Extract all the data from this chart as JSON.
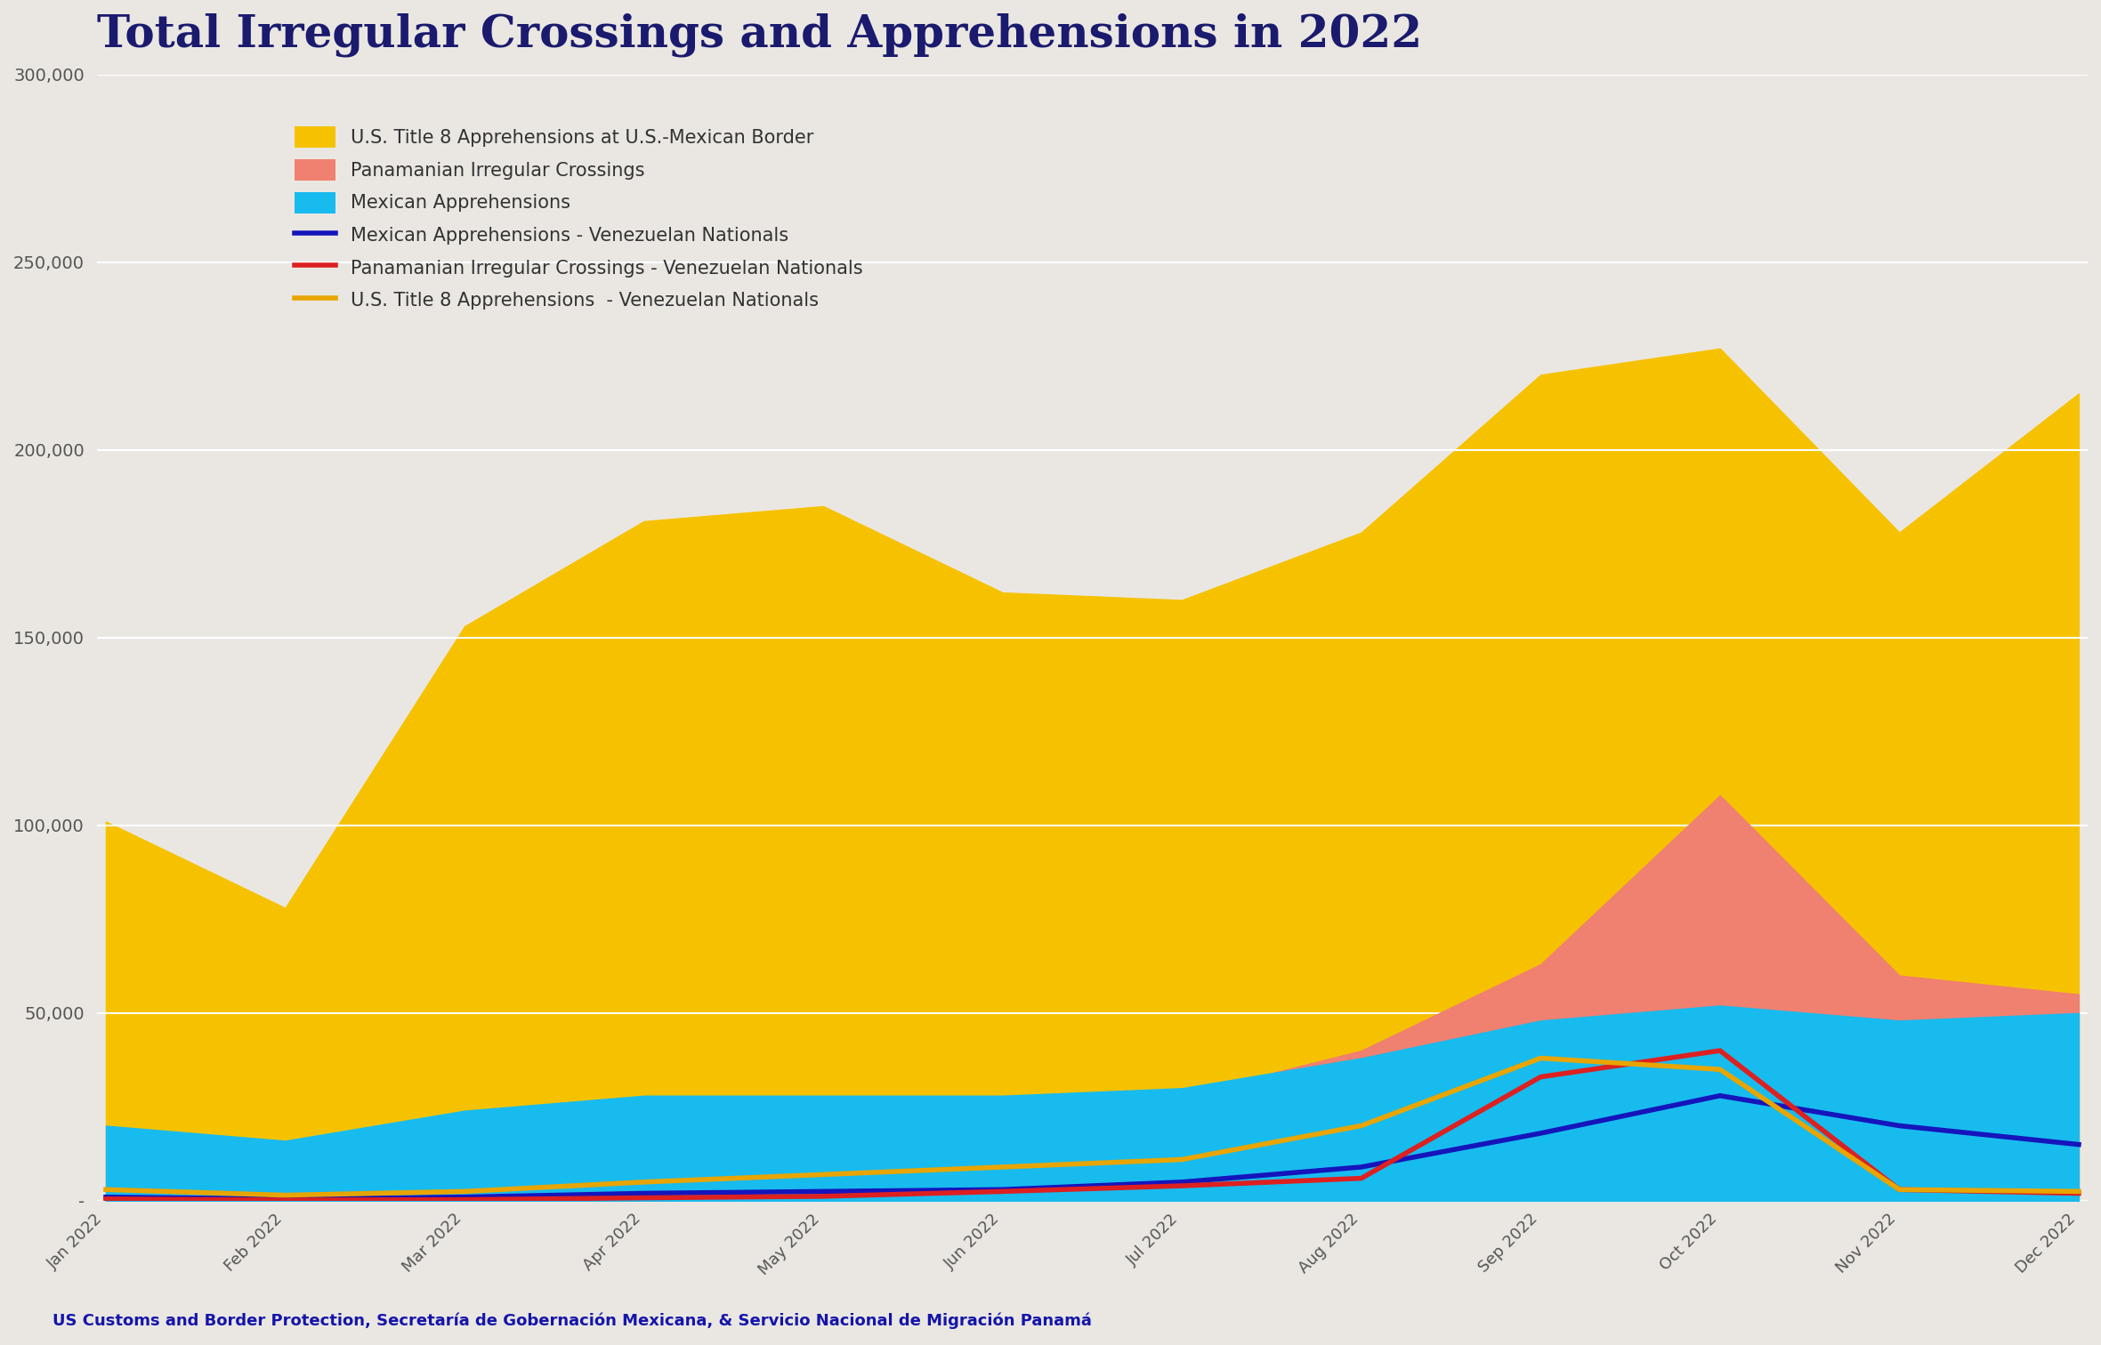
{
  "months": [
    "Jan 2022",
    "Feb 2022",
    "Mar 2022",
    "Apr 2022",
    "May 2022",
    "Jun 2022",
    "Jul 2022",
    "Aug 2022",
    "Sep 2022",
    "Oct 2022",
    "Nov 2022",
    "Dec 2022"
  ],
  "us_title8": [
    101000,
    78000,
    153000,
    181000,
    185000,
    162000,
    160000,
    178000,
    220000,
    227000,
    178000,
    215000
  ],
  "pan_irregular": [
    4000,
    3000,
    9000,
    18000,
    22000,
    25000,
    28000,
    40000,
    63000,
    108000,
    60000,
    55000
  ],
  "mex_apprehensions": [
    20000,
    16000,
    24000,
    28000,
    28000,
    28000,
    30000,
    38000,
    48000,
    52000,
    48000,
    50000
  ],
  "mex_venezuelan_line": [
    1000,
    500,
    1000,
    2000,
    2500,
    3000,
    5000,
    9000,
    18000,
    28000,
    20000,
    15000
  ],
  "pan_venezuelan_line": [
    500,
    200,
    300,
    800,
    1200,
    2500,
    4000,
    6000,
    33000,
    40000,
    3000,
    2000
  ],
  "us_venezuelan_line": [
    3000,
    1500,
    2500,
    5000,
    7000,
    9000,
    11000,
    20000,
    38000,
    35000,
    3000,
    2500
  ],
  "area_colors": [
    "#F6C200",
    "#F08070",
    "#18BBEE"
  ],
  "line_colors": [
    "#1515bb",
    "#dd2020",
    "#e8a500"
  ],
  "title": "Total Irregular Crossings and Apprehensions in 2022",
  "title_color": "#1a1a6e",
  "bg_color": "#eae7e2",
  "axes_bg_color": "#eae7e2",
  "ylabel_fontsize": 14,
  "xlabel_fontsize": 13,
  "title_fontsize": 36,
  "legend_labels": [
    "U.S. Title 8 Apprehensions at U.S.-Mexican Border",
    "Panamanian Irregular Crossings",
    "Mexican Apprehensions",
    "Mexican Apprehensions - Venezuelan Nationals",
    "Panamanian Irregular Crossings - Venezuelan Nationals",
    "U.S. Title 8 Apprehensions  - Venezuelan Nationals"
  ],
  "source_text_plain": "US Customs and Border Protection, Secretaría de Gobernación Mexicana, & Servicio Nacional de Migración Panamá",
  "ylim": [
    0,
    300000
  ],
  "yticks": [
    0,
    50000,
    100000,
    150000,
    200000,
    250000,
    300000
  ]
}
